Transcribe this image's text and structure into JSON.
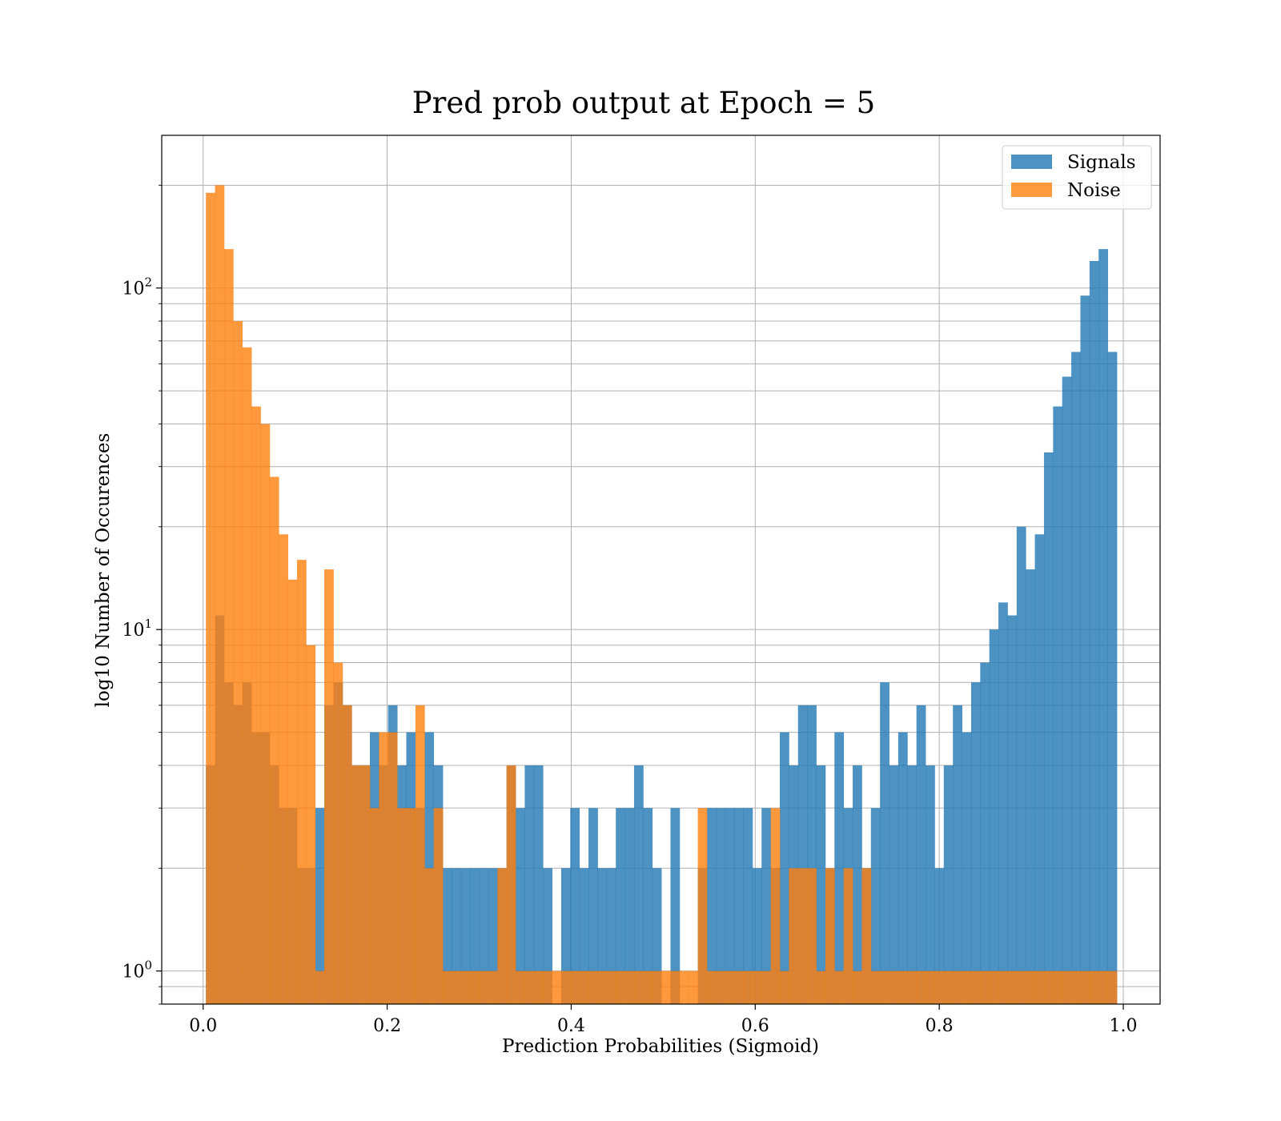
{
  "chart_data": {
    "type": "histogram",
    "title": "Pred prob output at Epoch = 5",
    "xlabel": "Prediction Probabilities (Sigmoid)",
    "ylabel": "log10 Number of Occurences",
    "xlim": [
      -0.045,
      1.04
    ],
    "ylim": [
      0.8,
      280
    ],
    "yscale": "log",
    "grid": true,
    "legend_position": "top-right",
    "x_ticks": [
      0.0,
      0.2,
      0.4,
      0.6,
      0.8,
      1.0
    ],
    "x_tick_labels": [
      "0.0",
      "0.2",
      "0.4",
      "0.6",
      "0.8",
      "1.0"
    ],
    "y_ticks": [
      1,
      10,
      100
    ],
    "y_tick_labels": [
      {
        "base": "10",
        "exp": "0"
      },
      {
        "base": "10",
        "exp": "1"
      },
      {
        "base": "10",
        "exp": "2"
      }
    ],
    "bins": {
      "start": 0.003,
      "end": 0.993,
      "count": 100
    },
    "series": [
      {
        "name": "Signals",
        "color": "#1f77b4",
        "alpha": 0.8,
        "counts": [
          4,
          11,
          7,
          6,
          7,
          5,
          5,
          4,
          3,
          3,
          2,
          2,
          3,
          6,
          7,
          6,
          4,
          4,
          5,
          4,
          6,
          4,
          5,
          3,
          5,
          4,
          2,
          2,
          2,
          2,
          2,
          2,
          2,
          4,
          3,
          4,
          4,
          2,
          0,
          2,
          3,
          2,
          3,
          2,
          2,
          3,
          3,
          4,
          3,
          2,
          0,
          3,
          0,
          0,
          2,
          3,
          3,
          3,
          3,
          3,
          2,
          3,
          2,
          5,
          4,
          6,
          6,
          4,
          2,
          5,
          3,
          4,
          2,
          3,
          7,
          4,
          5,
          4,
          6,
          4,
          2,
          4,
          6,
          5,
          7,
          8,
          10,
          12,
          11,
          20,
          15,
          19,
          33,
          45,
          55,
          65,
          95,
          120,
          130,
          65
        ]
      },
      {
        "name": "Noise",
        "color": "#ff7f0e",
        "alpha": 0.8,
        "counts": [
          190,
          200,
          130,
          80,
          67,
          45,
          40,
          28,
          19,
          14,
          16,
          9,
          1,
          15,
          8,
          6,
          4,
          4,
          3,
          5,
          5,
          3,
          3,
          6,
          2,
          3,
          1,
          1,
          1,
          1,
          1,
          1,
          2,
          4,
          1,
          1,
          1,
          1,
          1,
          1,
          1,
          1,
          1,
          1,
          1,
          1,
          1,
          1,
          1,
          1,
          1,
          1,
          1,
          1,
          3,
          1,
          1,
          1,
          1,
          1,
          1,
          1,
          3,
          1,
          2,
          2,
          2,
          1,
          2,
          1,
          2,
          1,
          2,
          1,
          1,
          1,
          1,
          1,
          1,
          1,
          1,
          1,
          1,
          1,
          1,
          1,
          1,
          1,
          1,
          1,
          1,
          1,
          1,
          1,
          1,
          1,
          1,
          1,
          1,
          1
        ]
      }
    ]
  }
}
